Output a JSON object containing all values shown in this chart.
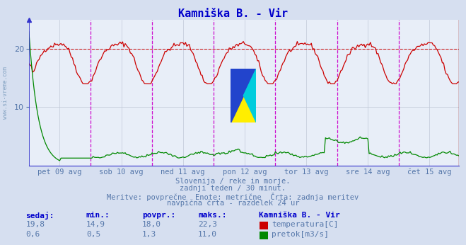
{
  "title": "Kamniška B. - Vir",
  "bg_color": "#d6dff0",
  "plot_bg_color": "#e8eef8",
  "grid_color": "#c0c8d8",
  "title_color": "#0000cc",
  "axis_label_color": "#5577aa",
  "text_color": "#5577aa",
  "temp_color": "#cc0000",
  "flow_color": "#008800",
  "vline_color_magenta": "#cc00cc",
  "vline_color_dark": "#555599",
  "border_left_color": "#3333cc",
  "border_right_color": "#880000",
  "dashed_line_y": 20,
  "ylim": [
    0,
    25
  ],
  "flow_ylim": [
    0,
    12
  ],
  "xlabel_labels": [
    "pet 09 avg",
    "sob 10 avg",
    "ned 11 avg",
    "pon 12 avg",
    "tor 13 avg",
    "sre 14 avg",
    "čet 15 avg"
  ],
  "n_points": 336,
  "subtitle1": "Slovenija / reke in morje.",
  "subtitle2": "zadnji teden / 30 minut.",
  "subtitle3": "Meritve: povprečne  Enote: metrične  Črta: zadnja meritev",
  "subtitle4": "navpična črta - razdelek 24 ur",
  "stat_headers": [
    "sedaj:",
    "min.:",
    "povpr.:",
    "maks.:"
  ],
  "stat_temp": [
    "19,8",
    "14,9",
    "18,0",
    "22,3"
  ],
  "stat_flow": [
    "0,6",
    "0,5",
    "1,3",
    "11,0"
  ],
  "legend_label": "Kamniška B. - Vir",
  "legend_temp": "temperatura[C]",
  "legend_flow": "pretok[m3/s]",
  "watermark": "www.si-vreme.com"
}
